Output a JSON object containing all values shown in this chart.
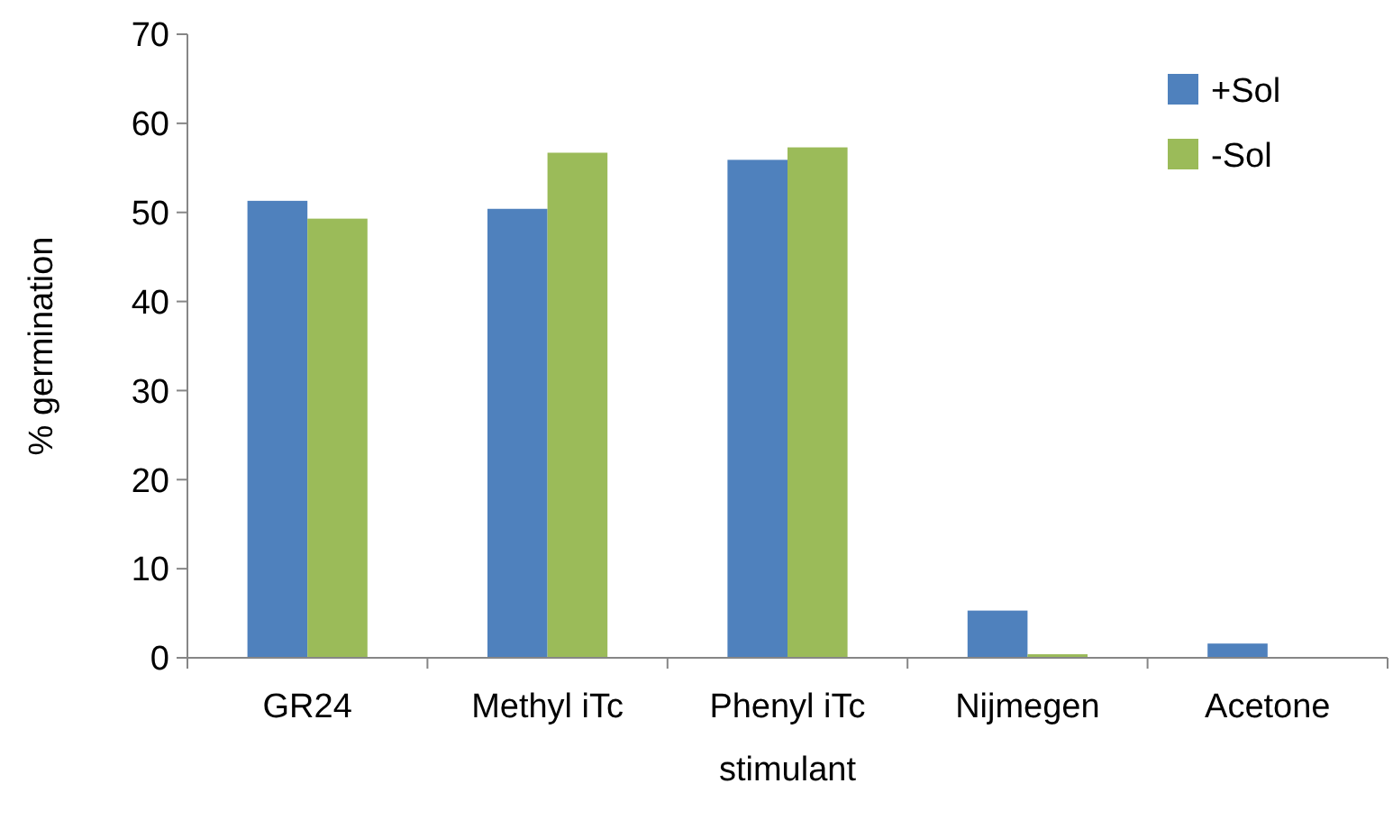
{
  "chart_data": {
    "type": "bar",
    "xlabel": "stimulant",
    "ylabel": "% germination",
    "categories": [
      "GR24",
      "Methyl iTc",
      "Phenyl iTc",
      "Nijmegen",
      "Acetone"
    ],
    "series": [
      {
        "name": "+Sol",
        "color": "#4f81bd",
        "values": [
          51.3,
          50.4,
          55.9,
          5.3,
          1.6
        ]
      },
      {
        "name": "-Sol",
        "color": "#9bbb59",
        "values": [
          49.3,
          56.7,
          57.3,
          0.4,
          0
        ]
      }
    ],
    "ylim": [
      0,
      70
    ],
    "yticks": [
      0,
      10,
      20,
      30,
      40,
      50,
      60,
      70
    ],
    "grid": false,
    "legend": "right"
  }
}
